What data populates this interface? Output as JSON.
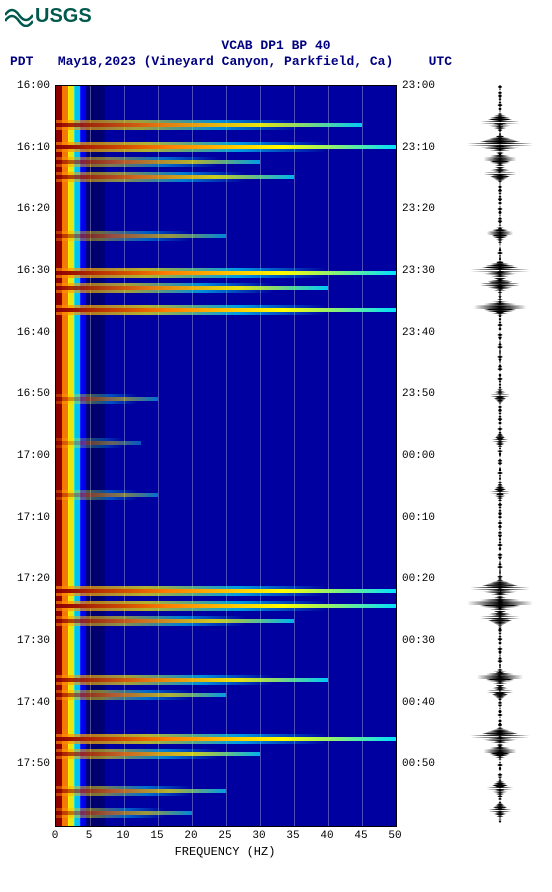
{
  "logo": {
    "text": "USGS",
    "color": "#00594c"
  },
  "title": "VCAB DP1 BP 40",
  "subtitle": {
    "pdt_label": "PDT",
    "date_location": "May18,2023 (Vineyard Canyon, Parkfield, Ca)",
    "utc_label": "UTC"
  },
  "spectrogram": {
    "type": "spectrogram",
    "x": {
      "label": "FREQUENCY (HZ)",
      "min": 0,
      "max": 50,
      "ticks": [
        0,
        5,
        10,
        15,
        20,
        25,
        30,
        35,
        40,
        45,
        50
      ]
    },
    "y_left": {
      "label_prefix": "PDT",
      "ticks": [
        "16:00",
        "16:10",
        "16:20",
        "16:30",
        "16:40",
        "16:50",
        "17:00",
        "17:10",
        "17:20",
        "17:30",
        "17:40",
        "17:50"
      ]
    },
    "y_right": {
      "label_prefix": "UTC",
      "ticks": [
        "23:00",
        "23:10",
        "23:20",
        "23:30",
        "23:40",
        "23:50",
        "00:00",
        "00:10",
        "00:20",
        "00:30",
        "00:40",
        "00:50"
      ]
    },
    "colormap": {
      "low": "#000060",
      "midlow": "#0000ff",
      "mid": "#00e0ff",
      "midhigh": "#ffff00",
      "high": "#ff8000",
      "peak": "#8b0000"
    },
    "low_freq_gradient_cols": 8,
    "event_bands": [
      {
        "t": 0.05,
        "intensity": 0.9,
        "width": 0.9
      },
      {
        "t": 0.08,
        "intensity": 1.0,
        "width": 1.0
      },
      {
        "t": 0.1,
        "intensity": 0.7,
        "width": 0.6
      },
      {
        "t": 0.12,
        "intensity": 0.8,
        "width": 0.7
      },
      {
        "t": 0.2,
        "intensity": 0.6,
        "width": 0.5
      },
      {
        "t": 0.25,
        "intensity": 1.0,
        "width": 1.0
      },
      {
        "t": 0.27,
        "intensity": 0.9,
        "width": 0.8
      },
      {
        "t": 0.3,
        "intensity": 1.0,
        "width": 1.0
      },
      {
        "t": 0.42,
        "intensity": 0.5,
        "width": 0.3
      },
      {
        "t": 0.48,
        "intensity": 0.4,
        "width": 0.25
      },
      {
        "t": 0.55,
        "intensity": 0.5,
        "width": 0.3
      },
      {
        "t": 0.68,
        "intensity": 1.0,
        "width": 1.0
      },
      {
        "t": 0.7,
        "intensity": 1.0,
        "width": 1.0
      },
      {
        "t": 0.72,
        "intensity": 0.8,
        "width": 0.7
      },
      {
        "t": 0.8,
        "intensity": 0.9,
        "width": 0.8
      },
      {
        "t": 0.82,
        "intensity": 0.7,
        "width": 0.5
      },
      {
        "t": 0.88,
        "intensity": 1.0,
        "width": 1.0
      },
      {
        "t": 0.9,
        "intensity": 0.8,
        "width": 0.6
      },
      {
        "t": 0.95,
        "intensity": 0.7,
        "width": 0.5
      },
      {
        "t": 0.98,
        "intensity": 0.6,
        "width": 0.4
      }
    ],
    "background_color": "#0000a0",
    "grid_color": "rgba(255,255,255,0.3)"
  },
  "seismogram": {
    "type": "waveform",
    "color": "#000000",
    "events": [
      {
        "t": 0.05,
        "amp": 0.6
      },
      {
        "t": 0.08,
        "amp": 1.0
      },
      {
        "t": 0.1,
        "amp": 0.5
      },
      {
        "t": 0.12,
        "amp": 0.5
      },
      {
        "t": 0.2,
        "amp": 0.4
      },
      {
        "t": 0.25,
        "amp": 0.9
      },
      {
        "t": 0.27,
        "amp": 0.6
      },
      {
        "t": 0.3,
        "amp": 0.8
      },
      {
        "t": 0.42,
        "amp": 0.3
      },
      {
        "t": 0.48,
        "amp": 0.25
      },
      {
        "t": 0.55,
        "amp": 0.3
      },
      {
        "t": 0.68,
        "amp": 0.9
      },
      {
        "t": 0.7,
        "amp": 1.0
      },
      {
        "t": 0.72,
        "amp": 0.6
      },
      {
        "t": 0.8,
        "amp": 0.7
      },
      {
        "t": 0.82,
        "amp": 0.4
      },
      {
        "t": 0.88,
        "amp": 0.9
      },
      {
        "t": 0.9,
        "amp": 0.5
      },
      {
        "t": 0.95,
        "amp": 0.4
      },
      {
        "t": 0.98,
        "amp": 0.35
      }
    ]
  }
}
